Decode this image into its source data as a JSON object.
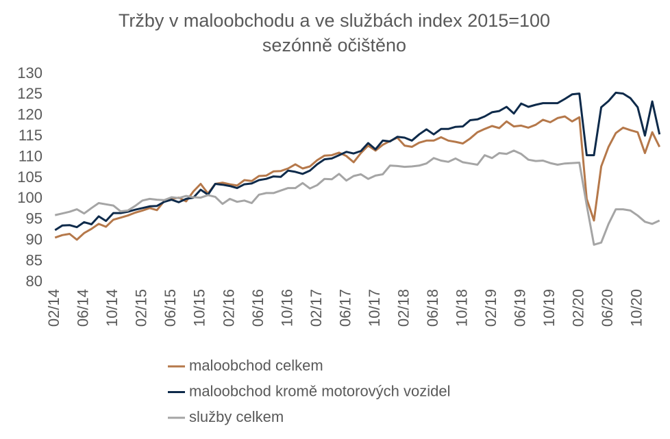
{
  "chart_data": {
    "type": "line",
    "title": "Tržby v maloobchodu a ve službách index 2015=100",
    "subtitle": "sezónně očištěno",
    "categories": [
      "02/14",
      null,
      null,
      null,
      "06/14",
      null,
      null,
      null,
      "10/14",
      null,
      null,
      null,
      "02/15",
      null,
      null,
      null,
      "06/15",
      null,
      null,
      null,
      "10/15",
      null,
      null,
      null,
      "02/16",
      null,
      null,
      null,
      "06/16",
      null,
      null,
      null,
      "10/16",
      null,
      null,
      null,
      "02/17",
      null,
      null,
      null,
      "06/17",
      null,
      null,
      null,
      "10/17",
      null,
      null,
      null,
      "02/18",
      null,
      null,
      null,
      "06/18",
      null,
      null,
      null,
      "10/18",
      null,
      null,
      null,
      "02/19",
      null,
      null,
      null,
      "06/19",
      null,
      null,
      null,
      "10/19",
      null,
      null,
      null,
      "02/20",
      null,
      null,
      null,
      "06/20",
      null,
      null,
      null,
      "10/20",
      null,
      null,
      null
    ],
    "series": [
      {
        "name": "maloobchod celkem",
        "color": "#b5784a",
        "values": [
          90.7,
          91.3,
          91.6,
          90.2,
          91.8,
          92.8,
          94.0,
          93.3,
          95.0,
          95.5,
          96.0,
          96.7,
          97.2,
          97.8,
          97.3,
          99.5,
          100.0,
          100.3,
          99.4,
          101.8,
          103.6,
          101.3,
          103.6,
          103.9,
          103.5,
          103.2,
          104.5,
          104.3,
          105.5,
          105.6,
          106.6,
          106.7,
          107.3,
          108.3,
          107.3,
          107.8,
          109.3,
          110.4,
          110.5,
          111.1,
          110.3,
          108.8,
          111.0,
          112.8,
          111.6,
          113.0,
          113.9,
          114.7,
          112.8,
          112.5,
          113.5,
          114.0,
          114.0,
          114.8,
          114.0,
          113.7,
          113.3,
          114.5,
          116.0,
          116.8,
          117.5,
          117.0,
          118.6,
          117.4,
          117.6,
          117.1,
          117.8,
          119.0,
          118.4,
          119.4,
          119.8,
          118.6,
          119.6,
          100.0,
          94.8,
          107.8,
          112.5,
          115.8,
          117.1,
          116.5,
          116.0,
          111.0,
          116.0,
          112.5
        ]
      },
      {
        "name": "maloobchod kromě motorových vozidel",
        "color": "#0e2a4a",
        "values": [
          92.5,
          93.6,
          93.7,
          93.2,
          94.4,
          93.9,
          95.8,
          94.7,
          96.6,
          96.6,
          96.9,
          97.4,
          97.8,
          98.2,
          98.3,
          99.3,
          99.8,
          99.2,
          100.0,
          100.3,
          102.2,
          101.0,
          103.6,
          103.4,
          103.1,
          102.6,
          103.5,
          103.7,
          104.5,
          104.8,
          105.4,
          105.3,
          106.8,
          106.5,
          106.0,
          106.8,
          108.3,
          109.5,
          109.7,
          110.5,
          111.3,
          110.9,
          111.5,
          113.4,
          111.9,
          114.0,
          113.8,
          114.9,
          114.7,
          114.0,
          115.5,
          116.7,
          115.5,
          116.8,
          116.8,
          117.3,
          117.4,
          118.9,
          119.1,
          119.8,
          120.8,
          121.1,
          122.1,
          120.5,
          122.9,
          122.1,
          122.6,
          123.0,
          123.0,
          123.0,
          124.0,
          125.1,
          125.3,
          110.5,
          110.5,
          122.0,
          123.5,
          125.5,
          125.3,
          124.2,
          122.0,
          115.2,
          123.4,
          115.5
        ]
      },
      {
        "name": "služby celkem",
        "color": "#a5a5a5",
        "values": [
          96.1,
          96.5,
          96.9,
          97.5,
          96.5,
          97.8,
          99.0,
          98.7,
          98.4,
          97.0,
          97.2,
          98.3,
          99.6,
          100.0,
          99.8,
          99.7,
          100.4,
          100.2,
          100.7,
          100.4,
          100.3,
          100.9,
          100.5,
          98.8,
          100.0,
          99.3,
          99.6,
          99.0,
          101.0,
          101.4,
          101.4,
          102.0,
          102.6,
          102.6,
          103.8,
          102.5,
          103.3,
          104.8,
          104.7,
          106.0,
          104.4,
          105.5,
          105.9,
          104.8,
          105.6,
          105.9,
          108.0,
          107.9,
          107.7,
          107.8,
          108.0,
          108.5,
          109.8,
          109.2,
          108.9,
          109.7,
          108.8,
          108.5,
          108.2,
          110.5,
          109.8,
          111.0,
          110.8,
          111.6,
          110.8,
          109.4,
          109.1,
          109.2,
          108.6,
          108.2,
          108.5,
          108.6,
          108.7,
          98.5,
          89.0,
          89.5,
          94.0,
          97.5,
          97.5,
          97.2,
          96.0,
          94.5,
          94.0,
          94.8
        ]
      }
    ],
    "ylim": [
      80,
      130
    ],
    "yticks": [
      80,
      85,
      90,
      95,
      100,
      105,
      110,
      115,
      120,
      125,
      130
    ],
    "grid": false,
    "legend": "bottom"
  }
}
